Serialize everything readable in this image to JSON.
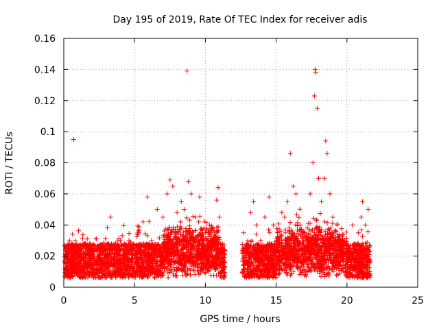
{
  "chart_data": {
    "type": "scatter",
    "title": "Day 195 of 2019, Rate Of TEC Index for receiver adis",
    "xlabel": "GPS time / hours",
    "ylabel": "ROTI / TECUs",
    "xlim": [
      0,
      25
    ],
    "ylim": [
      0,
      0.16
    ],
    "xticks": [
      0,
      5,
      10,
      15,
      20,
      25
    ],
    "yticks": [
      0,
      0.02,
      0.04,
      0.06,
      0.08,
      0.1,
      0.12,
      0.14,
      0.16
    ],
    "xtick_labels": [
      "0",
      "5",
      "10",
      "15",
      "20",
      "25"
    ],
    "ytick_labels": [
      "0",
      "0.02",
      "0.04",
      "0.06",
      "0.08",
      "0.1",
      "0.12",
      "0.14",
      "0.16"
    ],
    "grid": true,
    "marker": "+",
    "color": "#ff0000",
    "gaps": [
      [
        11.4,
        12.6
      ]
    ],
    "series": [
      {
        "name": "ROTI",
        "points": [
          [
            0.2,
            0.012
          ],
          [
            0.4,
            0.018
          ],
          [
            0.6,
            0.025
          ],
          [
            0.7,
            0.095
          ],
          [
            0.8,
            0.03
          ],
          [
            1.0,
            0.015
          ],
          [
            1.2,
            0.02
          ],
          [
            1.5,
            0.028
          ],
          [
            1.8,
            0.01
          ],
          [
            2.0,
            0.022
          ],
          [
            2.3,
            0.031
          ],
          [
            2.6,
            0.012
          ],
          [
            3.0,
            0.02
          ],
          [
            3.3,
            0.045
          ],
          [
            3.5,
            0.018
          ],
          [
            3.8,
            0.025
          ],
          [
            4.2,
            0.015
          ],
          [
            4.6,
            0.03
          ],
          [
            5.0,
            0.02
          ],
          [
            5.3,
            0.035
          ],
          [
            5.6,
            0.042
          ],
          [
            5.9,
            0.058
          ],
          [
            6.2,
            0.03
          ],
          [
            6.6,
            0.05
          ],
          [
            7.0,
            0.045
          ],
          [
            7.3,
            0.06
          ],
          [
            7.5,
            0.069
          ],
          [
            7.7,
            0.065
          ],
          [
            8.0,
            0.048
          ],
          [
            8.3,
            0.055
          ],
          [
            8.5,
            0.05
          ],
          [
            8.7,
            0.139
          ],
          [
            8.8,
            0.068
          ],
          [
            9.0,
            0.06
          ],
          [
            9.3,
            0.045
          ],
          [
            9.6,
            0.058
          ],
          [
            10.0,
            0.035
          ],
          [
            10.3,
            0.04
          ],
          [
            10.6,
            0.03
          ],
          [
            10.8,
            0.056
          ],
          [
            10.9,
            0.064
          ],
          [
            11.0,
            0.045
          ],
          [
            11.2,
            0.025
          ],
          [
            12.7,
            0.035
          ],
          [
            13.0,
            0.03
          ],
          [
            13.2,
            0.048
          ],
          [
            13.4,
            0.055
          ],
          [
            13.6,
            0.04
          ],
          [
            13.9,
            0.03
          ],
          [
            14.2,
            0.045
          ],
          [
            14.5,
            0.058
          ],
          [
            14.8,
            0.04
          ],
          [
            15.1,
            0.035
          ],
          [
            15.4,
            0.048
          ],
          [
            15.6,
            0.045
          ],
          [
            15.8,
            0.055
          ],
          [
            16.0,
            0.086
          ],
          [
            16.2,
            0.065
          ],
          [
            16.4,
            0.06
          ],
          [
            16.7,
            0.04
          ],
          [
            16.9,
            0.035
          ],
          [
            17.2,
            0.038
          ],
          [
            17.4,
            0.06
          ],
          [
            17.6,
            0.08
          ],
          [
            17.7,
            0.123
          ],
          [
            17.75,
            0.14
          ],
          [
            17.8,
            0.138
          ],
          [
            17.9,
            0.115
          ],
          [
            18.0,
            0.07
          ],
          [
            18.2,
            0.055
          ],
          [
            18.4,
            0.07
          ],
          [
            18.5,
            0.094
          ],
          [
            18.6,
            0.086
          ],
          [
            18.8,
            0.06
          ],
          [
            19.0,
            0.045
          ],
          [
            19.3,
            0.04
          ],
          [
            19.6,
            0.03
          ],
          [
            20.0,
            0.025
          ],
          [
            20.4,
            0.04
          ],
          [
            20.8,
            0.035
          ],
          [
            21.0,
            0.045
          ],
          [
            21.1,
            0.055
          ],
          [
            21.3,
            0.04
          ],
          [
            21.5,
            0.05
          ]
        ]
      }
    ]
  }
}
